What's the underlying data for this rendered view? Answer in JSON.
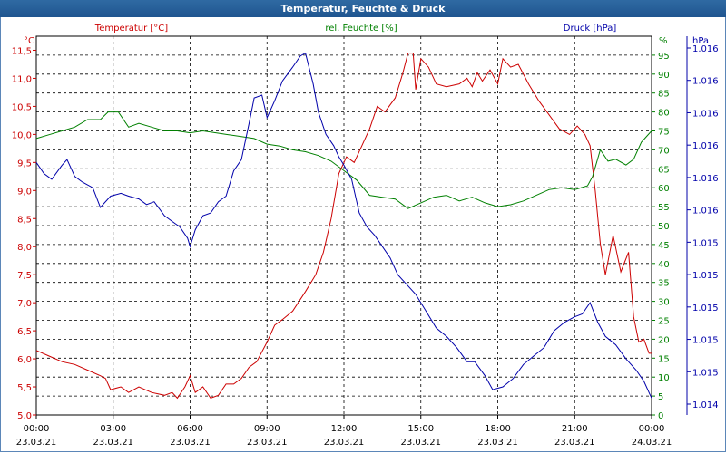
{
  "window": {
    "title": "Temperatur, Feuchte & Druck"
  },
  "chart_data": {
    "type": "line",
    "title": "Temperatur, Feuchte & Druck",
    "x_ticks": [
      {
        "time": "00:00",
        "date": "23.03.21"
      },
      {
        "time": "03:00",
        "date": "23.03.21"
      },
      {
        "time": "06:00",
        "date": "23.03.21"
      },
      {
        "time": "09:00",
        "date": "23.03.21"
      },
      {
        "time": "12:00",
        "date": "23.03.21"
      },
      {
        "time": "15:00",
        "date": "23.03.21"
      },
      {
        "time": "18:00",
        "date": "23.03.21"
      },
      {
        "time": "21:00",
        "date": "23.03.21"
      },
      {
        "time": "00:00",
        "date": "24.03.21"
      }
    ],
    "x_range_hours": [
      0,
      24
    ],
    "grid": true,
    "axes": {
      "temperature": {
        "legend": "Temperatur [°C]",
        "unit": "°C",
        "color": "#cc0000",
        "side": "left",
        "range": [
          5.0,
          11.75
        ],
        "ticks": [
          "5,0",
          "5,5",
          "6,0",
          "6,5",
          "7,0",
          "7,5",
          "8,0",
          "8,5",
          "9,0",
          "9,5",
          "10,0",
          "10,5",
          "11,0",
          "11,5"
        ]
      },
      "humidity": {
        "legend": "rel. Feuchte [%]",
        "unit": "%",
        "color": "#008000",
        "side": "right",
        "range": [
          0,
          100
        ],
        "ticks": [
          "0",
          "5",
          "10",
          "15",
          "20",
          "25",
          "30",
          "35",
          "40",
          "45",
          "50",
          "55",
          "60",
          "65",
          "70",
          "75",
          "80",
          "85",
          "90",
          "95"
        ]
      },
      "pressure": {
        "legend": "Druck [hPa]",
        "unit": "hPa",
        "color": "#0000aa",
        "side": "right",
        "ticks": [
          "1.014",
          "1.015",
          "1.015",
          "1.015",
          "1.015",
          "1.015",
          "1.016",
          "1.016",
          "1.016",
          "1.016",
          "1.016",
          "1.016"
        ]
      }
    },
    "series": [
      {
        "name": "Temperatur [°C]",
        "axis": "temperature",
        "color": "#cc0000",
        "points": [
          [
            0,
            6.15
          ],
          [
            0.5,
            6.05
          ],
          [
            1,
            5.95
          ],
          [
            1.5,
            5.9
          ],
          [
            2,
            5.8
          ],
          [
            2.5,
            5.7
          ],
          [
            2.7,
            5.65
          ],
          [
            2.9,
            5.45
          ],
          [
            3.3,
            5.5
          ],
          [
            3.6,
            5.4
          ],
          [
            4,
            5.5
          ],
          [
            4.5,
            5.4
          ],
          [
            5,
            5.35
          ],
          [
            5.3,
            5.4
          ],
          [
            5.5,
            5.3
          ],
          [
            5.8,
            5.5
          ],
          [
            6,
            5.7
          ],
          [
            6.2,
            5.4
          ],
          [
            6.5,
            5.5
          ],
          [
            6.8,
            5.3
          ],
          [
            7.1,
            5.35
          ],
          [
            7.4,
            5.55
          ],
          [
            7.7,
            5.55
          ],
          [
            8,
            5.65
          ],
          [
            8.3,
            5.85
          ],
          [
            8.6,
            5.95
          ],
          [
            9,
            6.3
          ],
          [
            9.3,
            6.6
          ],
          [
            9.6,
            6.7
          ],
          [
            10,
            6.85
          ],
          [
            10.5,
            7.2
          ],
          [
            10.9,
            7.5
          ],
          [
            11.2,
            7.9
          ],
          [
            11.5,
            8.5
          ],
          [
            11.8,
            9.3
          ],
          [
            12.1,
            9.6
          ],
          [
            12.4,
            9.5
          ],
          [
            12.7,
            9.8
          ],
          [
            13,
            10.1
          ],
          [
            13.3,
            10.5
          ],
          [
            13.6,
            10.4
          ],
          [
            14,
            10.65
          ],
          [
            14.3,
            11.1
          ],
          [
            14.5,
            11.45
          ],
          [
            14.7,
            11.45
          ],
          [
            14.8,
            10.8
          ],
          [
            15,
            11.35
          ],
          [
            15.3,
            11.2
          ],
          [
            15.6,
            10.9
          ],
          [
            16,
            10.85
          ],
          [
            16.5,
            10.9
          ],
          [
            16.8,
            11.0
          ],
          [
            17,
            10.85
          ],
          [
            17.2,
            11.1
          ],
          [
            17.4,
            10.95
          ],
          [
            17.7,
            11.15
          ],
          [
            18,
            10.9
          ],
          [
            18.2,
            11.35
          ],
          [
            18.5,
            11.2
          ],
          [
            18.8,
            11.25
          ],
          [
            19.2,
            10.9
          ],
          [
            19.6,
            10.6
          ],
          [
            20,
            10.35
          ],
          [
            20.4,
            10.1
          ],
          [
            20.8,
            10.0
          ],
          [
            21.1,
            10.15
          ],
          [
            21.4,
            10.0
          ],
          [
            21.6,
            9.8
          ],
          [
            21.8,
            9.0
          ],
          [
            22,
            8.05
          ],
          [
            22.2,
            7.5
          ],
          [
            22.5,
            8.2
          ],
          [
            22.8,
            7.55
          ],
          [
            23.1,
            7.9
          ],
          [
            23.3,
            6.75
          ],
          [
            23.5,
            6.3
          ],
          [
            23.7,
            6.35
          ],
          [
            23.9,
            6.1
          ],
          [
            24,
            6.1
          ]
        ]
      },
      {
        "name": "rel. Feuchte [%]",
        "axis": "humidity",
        "color": "#008000",
        "points": [
          [
            0,
            73
          ],
          [
            0.5,
            74
          ],
          [
            1,
            75
          ],
          [
            1.5,
            76
          ],
          [
            2,
            78
          ],
          [
            2.5,
            78
          ],
          [
            2.8,
            80
          ],
          [
            3.2,
            80
          ],
          [
            3.6,
            76
          ],
          [
            4,
            77
          ],
          [
            4.5,
            76
          ],
          [
            5,
            75
          ],
          [
            5.5,
            75
          ],
          [
            6,
            74.5
          ],
          [
            6.5,
            75
          ],
          [
            7,
            74.5
          ],
          [
            7.5,
            74
          ],
          [
            8,
            73.5
          ],
          [
            8.5,
            73
          ],
          [
            9,
            71.5
          ],
          [
            9.5,
            71
          ],
          [
            10,
            70
          ],
          [
            10.5,
            69.5
          ],
          [
            11,
            68.5
          ],
          [
            11.5,
            67
          ],
          [
            12,
            64.5
          ],
          [
            12.5,
            62
          ],
          [
            13,
            58
          ],
          [
            13.5,
            57.5
          ],
          [
            14,
            57
          ],
          [
            14.5,
            54.5
          ],
          [
            15,
            56
          ],
          [
            15.5,
            57.5
          ],
          [
            16,
            58
          ],
          [
            16.5,
            56.5
          ],
          [
            17,
            57.5
          ],
          [
            17.5,
            56
          ],
          [
            18,
            55
          ],
          [
            18.5,
            55.5
          ],
          [
            19,
            56.5
          ],
          [
            19.5,
            58
          ],
          [
            20,
            59.5
          ],
          [
            20.5,
            60
          ],
          [
            21,
            59.5
          ],
          [
            21.5,
            60.5
          ],
          [
            21.7,
            63
          ],
          [
            22,
            70
          ],
          [
            22.3,
            67
          ],
          [
            22.6,
            67.5
          ],
          [
            23,
            66
          ],
          [
            23.3,
            67.5
          ],
          [
            23.6,
            72
          ],
          [
            24,
            75
          ]
        ]
      },
      {
        "name": "Druck [hPa]",
        "axis": "pressure",
        "color": "#0000aa",
        "points": [
          [
            0,
            9.5
          ],
          [
            0.3,
            9.3
          ],
          [
            0.6,
            9.2
          ],
          [
            1,
            9.45
          ],
          [
            1.2,
            9.55
          ],
          [
            1.5,
            9.25
          ],
          [
            1.8,
            9.15
          ],
          [
            2.2,
            9.05
          ],
          [
            2.5,
            8.7
          ],
          [
            2.9,
            8.9
          ],
          [
            3.3,
            8.95
          ],
          [
            3.6,
            8.9
          ],
          [
            4,
            8.85
          ],
          [
            4.3,
            8.75
          ],
          [
            4.6,
            8.8
          ],
          [
            5,
            8.55
          ],
          [
            5.3,
            8.45
          ],
          [
            5.6,
            8.35
          ],
          [
            5.9,
            8.15
          ],
          [
            6,
            8.0
          ],
          [
            6.2,
            8.3
          ],
          [
            6.5,
            8.55
          ],
          [
            6.8,
            8.6
          ],
          [
            7.1,
            8.8
          ],
          [
            7.4,
            8.9
          ],
          [
            7.7,
            9.35
          ],
          [
            8,
            9.55
          ],
          [
            8.3,
            10.2
          ],
          [
            8.5,
            10.65
          ],
          [
            8.8,
            10.7
          ],
          [
            9,
            10.3
          ],
          [
            9.3,
            10.6
          ],
          [
            9.6,
            10.95
          ],
          [
            10,
            11.2
          ],
          [
            10.3,
            11.4
          ],
          [
            10.5,
            11.45
          ],
          [
            10.8,
            10.9
          ],
          [
            11,
            10.4
          ],
          [
            11.3,
            10.0
          ],
          [
            11.6,
            9.8
          ],
          [
            11.8,
            9.6
          ],
          [
            12,
            9.45
          ],
          [
            12.3,
            9.2
          ],
          [
            12.6,
            8.6
          ],
          [
            12.9,
            8.35
          ],
          [
            13.2,
            8.2
          ],
          [
            13.5,
            8.0
          ],
          [
            13.8,
            7.8
          ],
          [
            14.1,
            7.5
          ],
          [
            14.5,
            7.3
          ],
          [
            14.8,
            7.15
          ],
          [
            15.2,
            6.85
          ],
          [
            15.6,
            6.55
          ],
          [
            16,
            6.4
          ],
          [
            16.4,
            6.2
          ],
          [
            16.8,
            5.95
          ],
          [
            17.1,
            5.95
          ],
          [
            17.5,
            5.7
          ],
          [
            17.8,
            5.45
          ],
          [
            18.2,
            5.5
          ],
          [
            18.6,
            5.65
          ],
          [
            19,
            5.9
          ],
          [
            19.4,
            6.05
          ],
          [
            19.8,
            6.2
          ],
          [
            20.2,
            6.5
          ],
          [
            20.6,
            6.65
          ],
          [
            21,
            6.75
          ],
          [
            21.3,
            6.8
          ],
          [
            21.6,
            7.0
          ],
          [
            21.9,
            6.65
          ],
          [
            22.2,
            6.4
          ],
          [
            22.6,
            6.25
          ],
          [
            23,
            6.0
          ],
          [
            23.4,
            5.8
          ],
          [
            23.7,
            5.6
          ],
          [
            24,
            5.3
          ]
        ]
      }
    ]
  }
}
